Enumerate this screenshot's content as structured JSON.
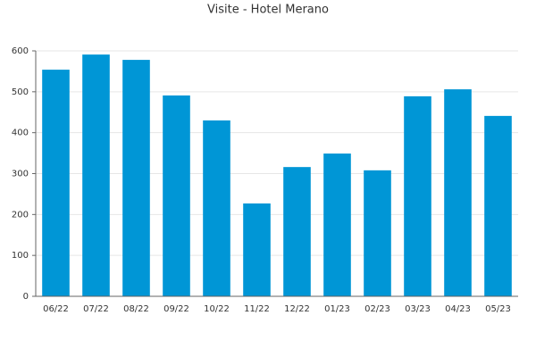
{
  "chart_data": {
    "type": "bar",
    "title": "Visite - Hotel Merano",
    "categories": [
      "06/22",
      "07/22",
      "08/22",
      "09/22",
      "10/22",
      "11/22",
      "12/22",
      "01/23",
      "02/23",
      "03/23",
      "04/23",
      "05/23"
    ],
    "values": [
      554,
      591,
      578,
      491,
      430,
      227,
      316,
      349,
      308,
      489,
      506,
      441
    ],
    "color": "#0096d6",
    "ylim": [
      0,
      600
    ],
    "yticks": [
      0,
      100,
      200,
      300,
      400,
      500,
      600
    ],
    "grid": true
  }
}
